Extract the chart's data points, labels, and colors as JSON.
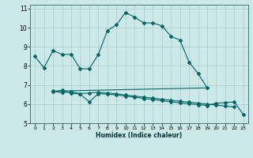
{
  "xlabel": "Humidex (Indice chaleur)",
  "bg_color": "#cce8e8",
  "grid_color": "#aacccc",
  "line_color": "#006666",
  "xlim_min": -0.5,
  "xlim_max": 23.5,
  "ylim_min": 5,
  "ylim_max": 11.2,
  "yticks": [
    5,
    6,
    7,
    8,
    9,
    10,
    11
  ],
  "xticks": [
    0,
    1,
    2,
    3,
    4,
    5,
    6,
    7,
    8,
    9,
    10,
    11,
    12,
    13,
    14,
    15,
    16,
    17,
    18,
    19,
    20,
    21,
    22,
    23
  ],
  "line1_x": [
    0,
    1,
    2,
    3,
    4,
    5,
    6,
    7,
    8,
    9,
    10,
    11,
    12,
    13,
    14,
    15,
    16,
    17,
    18,
    19
  ],
  "line1_y": [
    8.5,
    7.9,
    8.8,
    8.6,
    8.6,
    7.85,
    7.85,
    8.6,
    9.85,
    10.15,
    10.8,
    10.55,
    10.25,
    10.25,
    10.1,
    9.55,
    9.35,
    8.2,
    7.6,
    6.85
  ],
  "line2_x": [
    2,
    3,
    4,
    5,
    6,
    7,
    8,
    9,
    10,
    11,
    12,
    13,
    14,
    15,
    16,
    17,
    18,
    19,
    20,
    21,
    22,
    23
  ],
  "line2_y": [
    6.65,
    6.72,
    6.58,
    6.52,
    6.12,
    6.55,
    6.52,
    6.48,
    6.42,
    6.36,
    6.3,
    6.24,
    6.18,
    6.12,
    6.07,
    6.02,
    5.97,
    5.93,
    6.05,
    6.08,
    6.12,
    5.45
  ],
  "line3_x": [
    2,
    3,
    4,
    5,
    6,
    7,
    8,
    9,
    10,
    11,
    12,
    13,
    14,
    15,
    16,
    17,
    18,
    19,
    20,
    21,
    22
  ],
  "line3_y": [
    6.68,
    6.6,
    6.64,
    6.55,
    6.58,
    6.62,
    6.58,
    6.54,
    6.48,
    6.42,
    6.37,
    6.31,
    6.26,
    6.2,
    6.15,
    6.1,
    6.05,
    6.0,
    5.95,
    5.9,
    5.85
  ],
  "line4_x": [
    2,
    19
  ],
  "line4_y": [
    6.68,
    6.85
  ]
}
